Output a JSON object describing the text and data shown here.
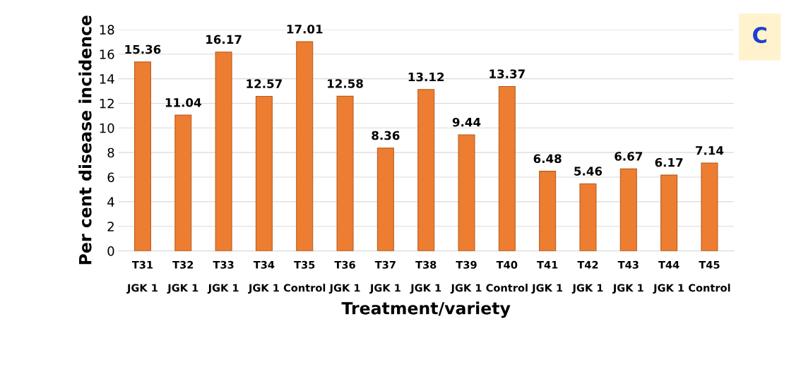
{
  "chart_data": {
    "type": "bar",
    "categories": [
      "T31\n\nJGK 1",
      "T32\n\nJGK 1",
      "T33\n\nJGK 1",
      "T34\n\nJGK 1",
      "T35\n\nControl",
      "T36\n\nJGK 1",
      "T37\n\nJGK 1",
      "T38\n\nJGK 1",
      "T39\n\nJGK 1",
      "T40\n\nControl",
      "T41\n\nJGK 1",
      "T42\n\nJGK 1",
      "T43\n\nJGK 1",
      "T44\n\nJGK 1",
      "T45\n\nControl"
    ],
    "values": [
      15.36,
      11.04,
      16.17,
      12.57,
      17.01,
      12.58,
      8.36,
      13.12,
      9.44,
      13.37,
      6.48,
      5.46,
      6.67,
      6.17,
      7.14
    ],
    "color": "#ed7d31",
    "xlabel": "Treatment/variety",
    "ylabel": "Per cent disease incidence",
    "ylim": [
      0,
      18
    ],
    "yticks": [
      0,
      2,
      4,
      6,
      8,
      10,
      12,
      14,
      16,
      18
    ],
    "grid": "y",
    "data_labels": true,
    "annotations": [
      "C"
    ]
  }
}
